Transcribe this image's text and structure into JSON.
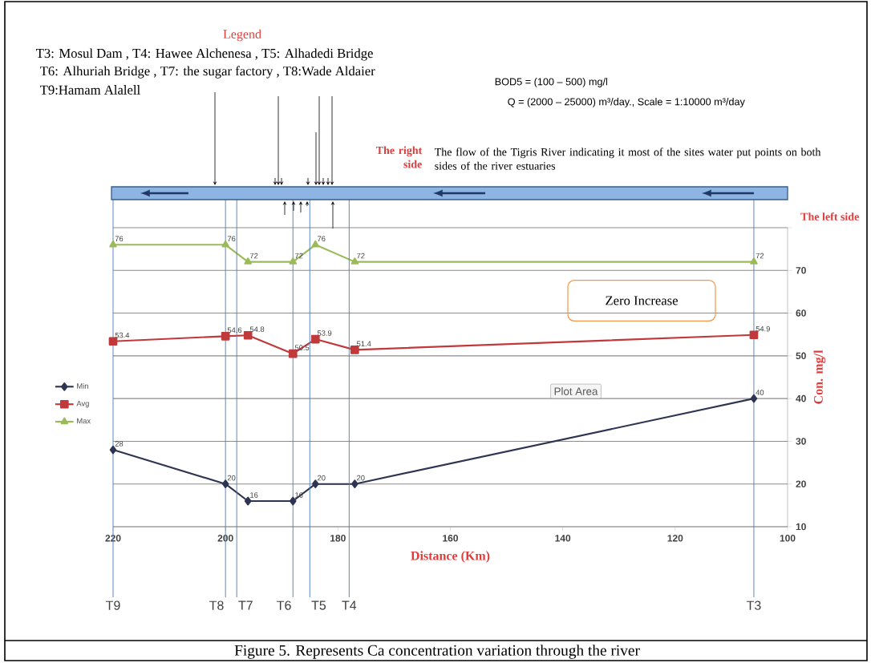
{
  "chart_data": {
    "type": "line",
    "xlabel": "Distance (Km)",
    "ylabel": "Con. mg/l",
    "x": [
      220,
      200,
      196,
      188,
      184,
      177,
      106
    ],
    "series": [
      {
        "name": "Min",
        "color": "#2e3552",
        "marker": "diamond",
        "values": [
          28,
          20,
          16,
          16,
          20,
          20,
          40
        ]
      },
      {
        "name": "Avg",
        "color": "#c0393b",
        "marker": "square",
        "values": [
          53.4,
          54.6,
          54.8,
          50.5,
          53.9,
          51.4,
          54.9
        ]
      },
      {
        "name": "Max",
        "color": "#9bbb59",
        "marker": "triangle",
        "values": [
          76,
          76,
          72,
          72,
          76,
          72,
          72
        ]
      }
    ],
    "xlim": [
      220,
      100
    ],
    "xticks": [
      220,
      200,
      180,
      160,
      140,
      120,
      100
    ],
    "ylim": [
      10,
      80
    ],
    "yticks": [
      10,
      20,
      30,
      40,
      50,
      60,
      70,
      {
        "value": 80,
        "label": null
      }
    ],
    "grid": "y",
    "legend": "left",
    "data_labels": true,
    "line_style": "solid",
    "ref_lines": [
      {
        "axis": "x",
        "value": 220,
        "label": "T9",
        "color": "#4f81bd"
      },
      {
        "axis": "x",
        "value": 200,
        "label": "T8",
        "color": "#4f81bd"
      },
      {
        "axis": "x",
        "value": 198,
        "label": "T7",
        "color": "#4f81bd"
      },
      {
        "axis": "x",
        "value": 188,
        "label": "T6",
        "color": "#4f81bd"
      },
      {
        "axis": "x",
        "value": 185,
        "label": "T5",
        "color": "#4f81bd"
      },
      {
        "axis": "x",
        "value": 178,
        "label": "T4",
        "color": "#4f81bd"
      },
      {
        "axis": "x",
        "value": 106,
        "label": "T3",
        "color": "#4f81bd"
      }
    ],
    "annotations": [
      "Legend",
      "T3: Mosul Dam , T4: Hawee Alchenesa , T5: Alhadedi Bridge",
      "T6: Alhuriah Bridge , T7: the sugar factory , T8:Wade Aldaier",
      "T9:Hamam Alalell",
      "BOD5 = (100 – 500) mg/l",
      "Q = (2000 – 25000) m³/day., Scale = 1:10000 m³/day",
      "The right side",
      "The flow of the Tigris River indicating it most of the sites water put points on both sides of the river estuaries",
      "The left side",
      "Zero Increase",
      "Plot Area",
      "Figure 5. Represents Ca concentration variation through the river"
    ]
  }
}
